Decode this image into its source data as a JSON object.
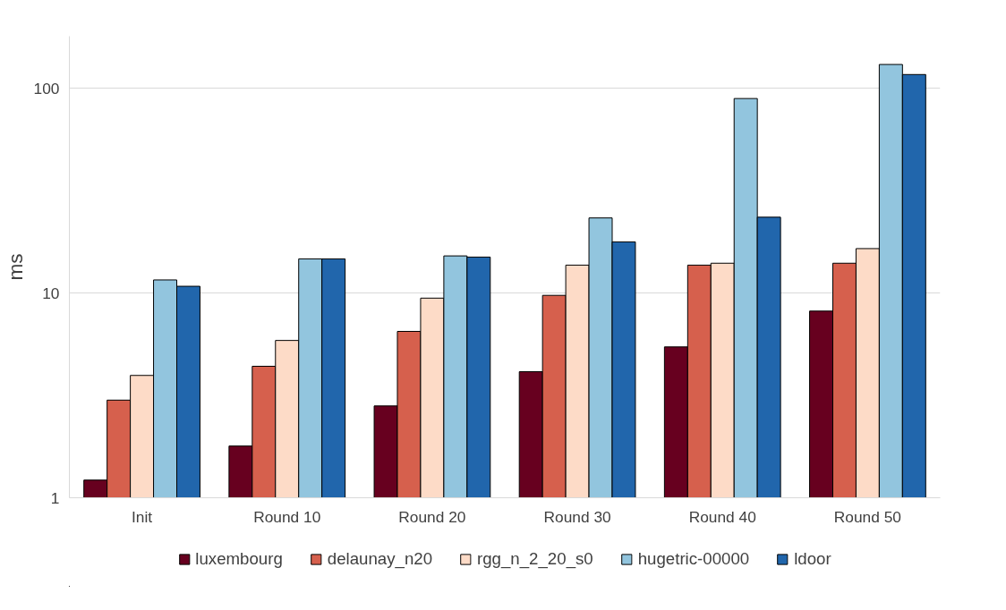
{
  "chart_data": {
    "type": "bar",
    "ylabel": "ms",
    "log": true,
    "grid": "y",
    "legend": "bottom",
    "categories": [
      "Init",
      "Round 10",
      "Round 20",
      "Round 30",
      "Round 40",
      "Round 50"
    ],
    "ylim": [
      1,
      180
    ],
    "yticks": [
      1,
      10,
      100
    ],
    "series": [
      {
        "name": "luxembourg",
        "color": "#67001f",
        "values": [
          1.22,
          1.79,
          2.81,
          4.13,
          5.46,
          8.17
        ]
      },
      {
        "name": "delaunay_n20",
        "color": "#d6604d",
        "values": [
          3.0,
          4.39,
          6.5,
          9.75,
          13.7,
          14.0
        ]
      },
      {
        "name": "rgg_n_2_20_s0",
        "color": "#fddbc7",
        "values": [
          3.96,
          5.87,
          9.45,
          13.7,
          14.0,
          16.5
        ]
      },
      {
        "name": "hugetric-00000",
        "color": "#92c5de",
        "values": [
          11.6,
          14.7,
          15.2,
          23.3,
          89.3,
          131
        ]
      },
      {
        "name": "ldoor",
        "color": "#2166ac",
        "values": [
          10.8,
          14.7,
          15.0,
          17.8,
          23.5,
          117
        ]
      }
    ]
  }
}
